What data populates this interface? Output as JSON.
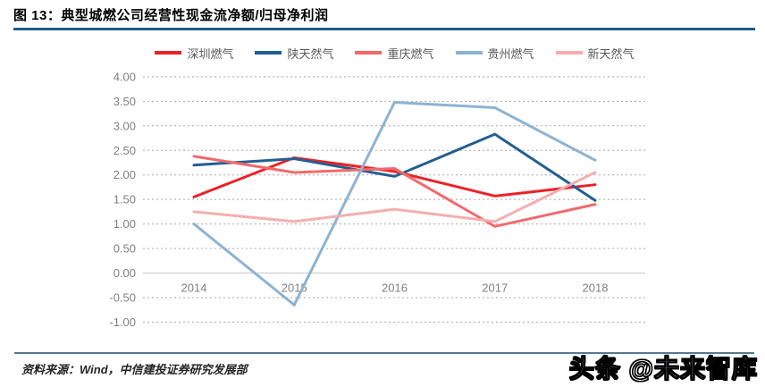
{
  "figure": {
    "title": "图 13：典型城燃公司经营性现金流净额/归母净利润"
  },
  "colors": {
    "accent_rule": "#1e5c94",
    "footer_rule": "#55788f",
    "grid_line": "#a8a8a8",
    "zero_line": "#c8c8c8",
    "axis_label": "#808080",
    "legend_label": "#595959"
  },
  "chart_data": {
    "type": "line",
    "title": "典型城燃公司经营性现金流净额/归母净利润",
    "categories": [
      "2014",
      "2015",
      "2016",
      "2017",
      "2018"
    ],
    "series": [
      {
        "name": "深圳燃气",
        "color": "#ec2127",
        "values": [
          1.55,
          2.35,
          2.07,
          1.57,
          1.8
        ]
      },
      {
        "name": "陕天然气",
        "color": "#235e92",
        "values": [
          2.2,
          2.33,
          1.97,
          2.83,
          1.48
        ]
      },
      {
        "name": "重庆燃气",
        "color": "#f2696b",
        "values": [
          2.38,
          2.05,
          2.13,
          0.95,
          1.4
        ]
      },
      {
        "name": "贵州燃气",
        "color": "#8db3d2",
        "values": [
          1.0,
          -0.65,
          3.48,
          3.37,
          2.3
        ]
      },
      {
        "name": "新天然气",
        "color": "#f5aeae",
        "values": [
          1.25,
          1.05,
          1.3,
          1.05,
          2.05
        ]
      }
    ],
    "ylim": [
      -1.0,
      4.0
    ],
    "ytick_step": 0.5,
    "ytick_labels": [
      "4.00",
      "3.50",
      "3.00",
      "2.50",
      "2.00",
      "1.50",
      "1.00",
      "0.50",
      "0.00",
      "-0.50",
      "-1.00"
    ],
    "grid": "horizontal-dotted",
    "legend_position": "top",
    "xlabel": "",
    "ylabel": ""
  },
  "footer": {
    "source": "资料来源：Wind，中信建投证券研究发展部",
    "watermark": "头条 @未来智库"
  }
}
